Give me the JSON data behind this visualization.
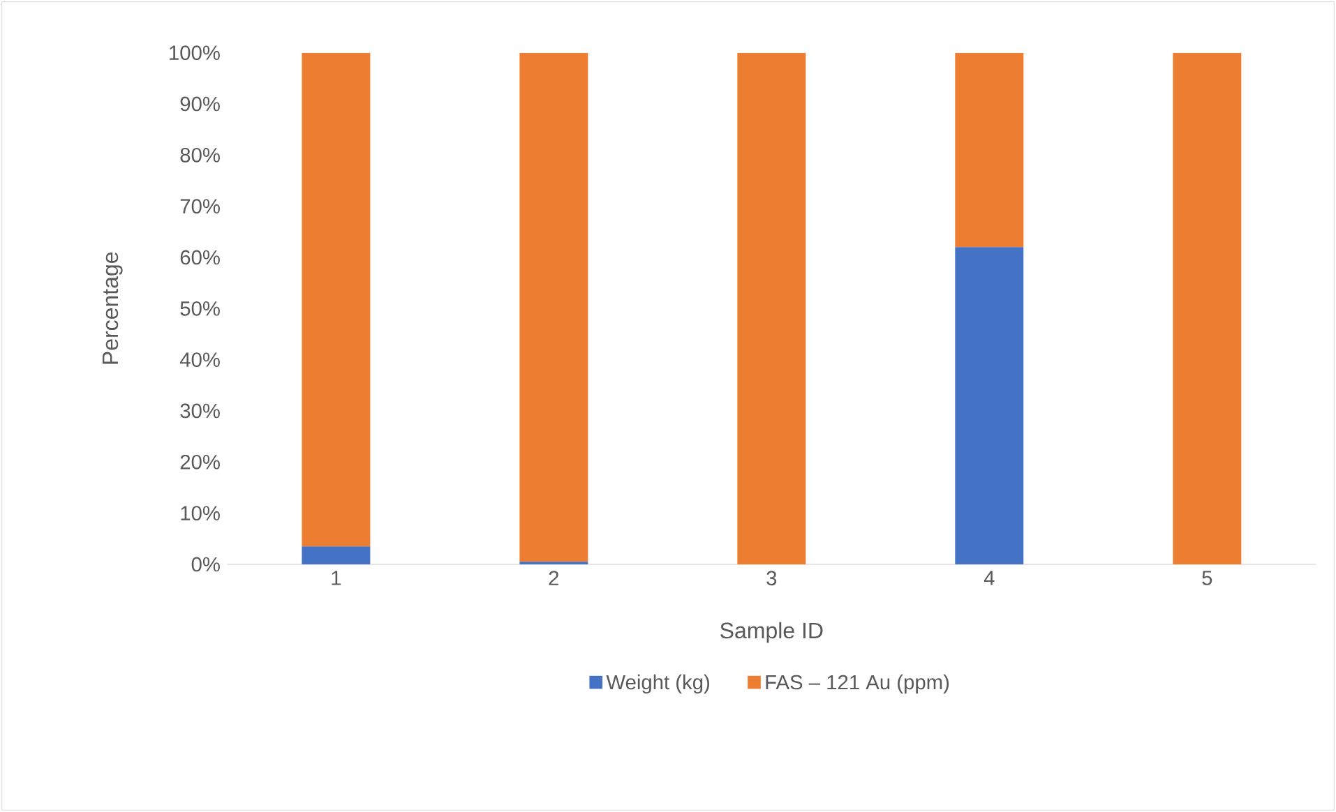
{
  "chart_data": {
    "type": "bar",
    "stacked": true,
    "xlabel": "Sample ID",
    "ylabel": "Percentage",
    "categories": [
      "1",
      "2",
      "3",
      "4",
      "5"
    ],
    "series": [
      {
        "name": "Weight (kg)",
        "color": "#4472c4",
        "values": [
          3.5,
          0.5,
          0,
          62,
          0
        ]
      },
      {
        "name": "FAS – 121 Au (ppm)",
        "color": "#ed7d31",
        "values": [
          96.5,
          99.5,
          100,
          38,
          100
        ]
      }
    ],
    "ylim": [
      0,
      100
    ],
    "yticks": [
      {
        "value": 0,
        "label": "0%"
      },
      {
        "value": 10,
        "label": "10%"
      },
      {
        "value": 20,
        "label": "20%"
      },
      {
        "value": 30,
        "label": "30%"
      },
      {
        "value": 40,
        "label": "40%"
      },
      {
        "value": 50,
        "label": "50%"
      },
      {
        "value": 60,
        "label": "60%"
      },
      {
        "value": 70,
        "label": "70%"
      },
      {
        "value": 80,
        "label": "80%"
      },
      {
        "value": 90,
        "label": "90%"
      },
      {
        "value": 100,
        "label": "100%"
      }
    ],
    "legend": "bottom"
  }
}
